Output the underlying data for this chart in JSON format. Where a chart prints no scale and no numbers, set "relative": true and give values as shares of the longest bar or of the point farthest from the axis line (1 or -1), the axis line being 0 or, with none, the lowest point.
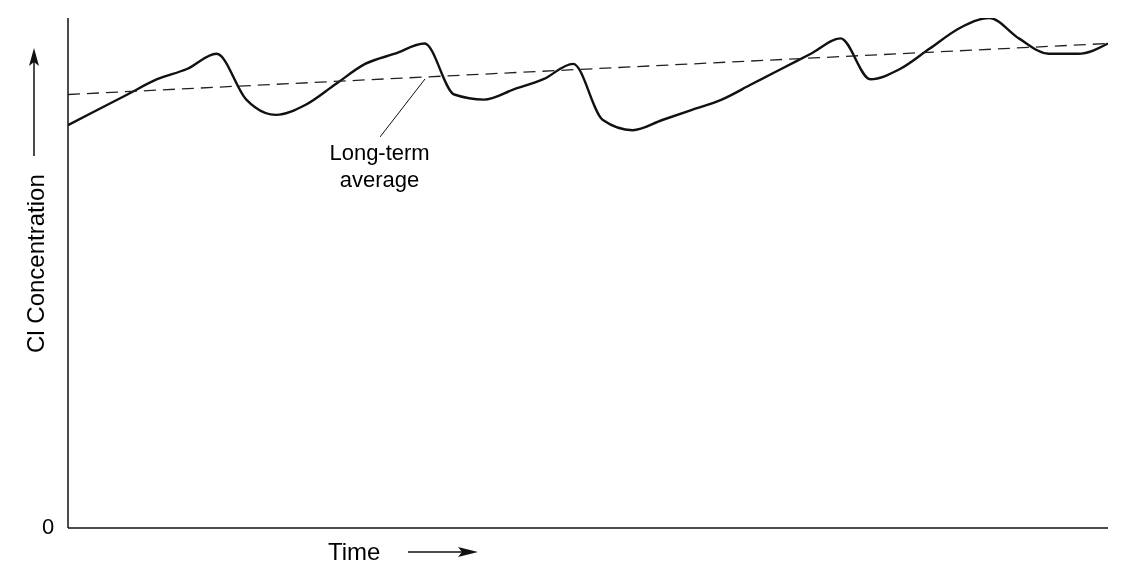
{
  "chart_data": {
    "type": "line",
    "relative": true,
    "xlabel": "Time",
    "ylabel": "Cl Concentration",
    "marker": "none",
    "categories": [
      null,
      null,
      null,
      null,
      null,
      null,
      null,
      null,
      null,
      null,
      null,
      null,
      null,
      null,
      null,
      null,
      null,
      null,
      null,
      null,
      null,
      null,
      null,
      null,
      null,
      null,
      null,
      null,
      null,
      null,
      null,
      null,
      null,
      null,
      null,
      null
    ],
    "series": [
      {
        "color": "#111111",
        "line_style": "solid",
        "values": [
          0.79,
          0.82,
          0.85,
          0.88,
          0.9,
          0.93,
          0.84,
          0.81,
          0.83,
          0.87,
          0.91,
          0.93,
          0.95,
          0.85,
          0.84,
          0.86,
          0.88,
          0.91,
          0.8,
          0.78,
          0.8,
          0.82,
          0.84,
          0.87,
          0.9,
          0.93,
          0.96,
          0.88,
          0.9,
          0.94,
          0.98,
          1.0,
          0.96,
          0.93,
          0.93,
          0.95
        ]
      },
      {
        "type": "line",
        "color": "#222222",
        "line_style": "dashed",
        "values": [
          0.85,
          null,
          null,
          null,
          null,
          null,
          null,
          null,
          null,
          null,
          null,
          null,
          null,
          null,
          null,
          null,
          null,
          null,
          null,
          null,
          null,
          null,
          null,
          null,
          null,
          null,
          null,
          null,
          null,
          null,
          null,
          null,
          null,
          null,
          null,
          0.95
        ]
      }
    ],
    "annotations": [
      "Long-term average",
      "0"
    ]
  }
}
